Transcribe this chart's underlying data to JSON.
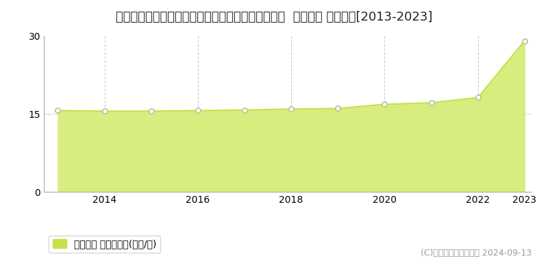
{
  "title": "北海道札幌市清田区北野３条３丁目１５８番６０外  地価公示 地価推移[2013-2023]",
  "years": [
    2013,
    2014,
    2015,
    2016,
    2017,
    2018,
    2019,
    2020,
    2021,
    2022,
    2023
  ],
  "values": [
    15.6,
    15.5,
    15.5,
    15.6,
    15.7,
    15.9,
    16.0,
    16.8,
    17.1,
    18.1,
    29.0
  ],
  "ylim": [
    0,
    30
  ],
  "yticks": [
    0,
    15,
    30
  ],
  "line_color": "#c8e04b",
  "fill_color": "#d8ed80",
  "fill_alpha": 1.0,
  "marker_color": "#ffffff",
  "marker_edge_color": "#b0c890",
  "grid_color": "#cccccc",
  "bg_color": "#ffffff",
  "plot_bg_color": "#ffffff",
  "legend_label": "地価公示 平均坪単価(万円/坪)",
  "legend_marker_color": "#c8e04b",
  "copyright_text": "(C)土地価格ドットコム 2024-09-13",
  "title_fontsize": 13,
  "axis_fontsize": 10,
  "legend_fontsize": 10,
  "copyright_fontsize": 9
}
